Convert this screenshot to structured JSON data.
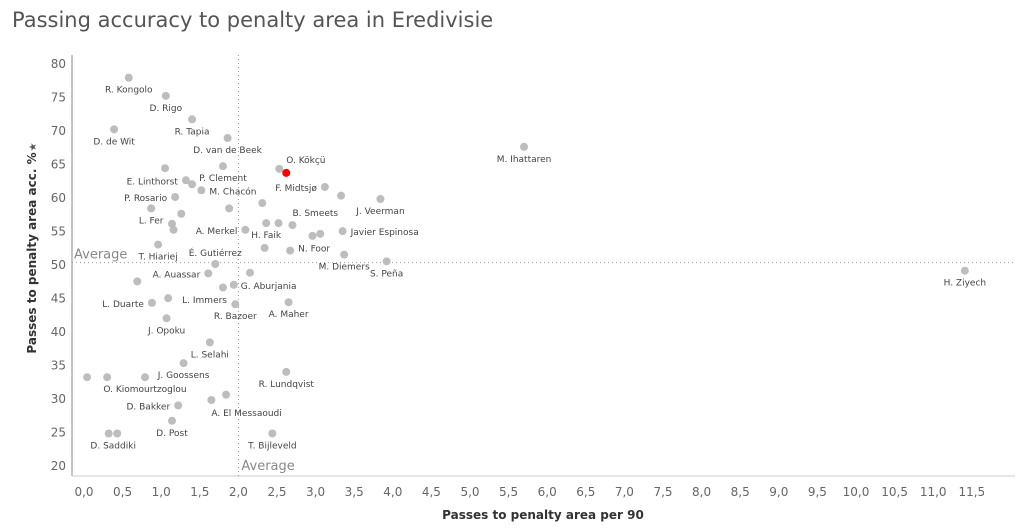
{
  "chart_data": {
    "type": "scatter",
    "title": "Passing accuracy to penalty area in Eredivisie",
    "xlabel": "Passes to penalty area per 90",
    "ylabel": "Passes to penalty area acc. %",
    "ylabel_icon": "sort-star-icon",
    "xlim": [
      0,
      11.5
    ],
    "ylim": [
      20,
      80
    ],
    "x_ticks": [
      "0,0",
      "0,5",
      "1,0",
      "1,5",
      "2,0",
      "2,5",
      "3,0",
      "3,5",
      "4,0",
      "4,5",
      "5,0",
      "5,5",
      "6,0",
      "6,5",
      "7,0",
      "7,5",
      "8,0",
      "8,5",
      "9,0",
      "9,5",
      "10,0",
      "10,5",
      "11,0",
      "11,5"
    ],
    "y_ticks": [
      "20",
      "25",
      "30",
      "35",
      "40",
      "45",
      "50",
      "55",
      "60",
      "65",
      "70",
      "75",
      "80"
    ],
    "grid": false,
    "reference_lines": {
      "x_average": 2.0,
      "y_average": 50.2,
      "label": "Average"
    },
    "colors": {
      "point": "#bdbdbd",
      "highlight": "#ff0000",
      "reference": "#999999"
    },
    "points": [
      {
        "name": "R. Kongolo",
        "x": 0.58,
        "y": 77.8
      },
      {
        "name": "D. Rigo",
        "x": 1.06,
        "y": 75.1
      },
      {
        "name": "R. Tapia",
        "x": 1.4,
        "y": 71.6
      },
      {
        "name": "D. de Wit",
        "x": 0.39,
        "y": 70.1
      },
      {
        "name": "D. van de Beek",
        "x": 1.86,
        "y": 68.8
      },
      {
        "name": "",
        "x": 1.05,
        "y": 64.3
      },
      {
        "name": "P. Clement",
        "x": 1.8,
        "y": 64.6
      },
      {
        "name": "",
        "x": 2.53,
        "y": 64.2
      },
      {
        "name": "O. Kökçü",
        "x": 2.62,
        "y": 63.6,
        "highlight": true
      },
      {
        "name": "E. Linthorst",
        "x": 1.32,
        "y": 62.5
      },
      {
        "name": "",
        "x": 1.4,
        "y": 61.9
      },
      {
        "name": "M. Chacón",
        "x": 1.52,
        "y": 61.0
      },
      {
        "name": "F. Midtsjø",
        "x": 3.12,
        "y": 61.5
      },
      {
        "name": "",
        "x": 3.33,
        "y": 60.2
      },
      {
        "name": "J. Veerman",
        "x": 3.84,
        "y": 59.7
      },
      {
        "name": "P. Rosario",
        "x": 1.18,
        "y": 60.0
      },
      {
        "name": "",
        "x": 2.31,
        "y": 59.1
      },
      {
        "name": "L. Fer",
        "x": 0.87,
        "y": 58.3
      },
      {
        "name": "",
        "x": 1.26,
        "y": 57.5
      },
      {
        "name": "",
        "x": 1.88,
        "y": 58.3
      },
      {
        "name": "",
        "x": 1.14,
        "y": 56.0
      },
      {
        "name": "",
        "x": 1.16,
        "y": 55.1
      },
      {
        "name": "A. Merkel",
        "x": 2.09,
        "y": 55.1
      },
      {
        "name": "H. Faik",
        "x": 2.36,
        "y": 56.1
      },
      {
        "name": "",
        "x": 2.52,
        "y": 56.1
      },
      {
        "name": "B. Smeets",
        "x": 2.7,
        "y": 55.8
      },
      {
        "name": "",
        "x": 2.96,
        "y": 54.2
      },
      {
        "name": "",
        "x": 3.06,
        "y": 54.5
      },
      {
        "name": "Javier Espinosa",
        "x": 3.35,
        "y": 54.9
      },
      {
        "name": "T. Hiariej",
        "x": 0.96,
        "y": 52.9
      },
      {
        "name": "",
        "x": 2.34,
        "y": 52.4
      },
      {
        "name": "N. Foor",
        "x": 2.67,
        "y": 52.0
      },
      {
        "name": "M. Diemers",
        "x": 3.37,
        "y": 51.4
      },
      {
        "name": "S. Peña",
        "x": 3.92,
        "y": 50.4
      },
      {
        "name": "É. Gutiérrez",
        "x": 1.7,
        "y": 50.0
      },
      {
        "name": "A. Auassar",
        "x": 1.61,
        "y": 48.6
      },
      {
        "name": "",
        "x": 2.15,
        "y": 48.7
      },
      {
        "name": "",
        "x": 0.69,
        "y": 47.4
      },
      {
        "name": "",
        "x": 1.8,
        "y": 46.5
      },
      {
        "name": "G. Aburjania",
        "x": 1.94,
        "y": 46.9
      },
      {
        "name": "L. Duarte",
        "x": 0.88,
        "y": 44.2
      },
      {
        "name": "L. Immers",
        "x": 1.09,
        "y": 44.9
      },
      {
        "name": "R. Bazoer",
        "x": 1.96,
        "y": 44.0
      },
      {
        "name": "A. Maher",
        "x": 2.65,
        "y": 44.3
      },
      {
        "name": "J. Opoku",
        "x": 1.07,
        "y": 41.9
      },
      {
        "name": "L. Selahi",
        "x": 1.63,
        "y": 38.3
      },
      {
        "name": "J. Goossens",
        "x": 1.29,
        "y": 35.2
      },
      {
        "name": "",
        "x": 0.04,
        "y": 33.1
      },
      {
        "name": "",
        "x": 0.3,
        "y": 33.1
      },
      {
        "name": "O. Kiomourtzoglou",
        "x": 0.79,
        "y": 33.1
      },
      {
        "name": "R. Lundqvist",
        "x": 2.62,
        "y": 33.9
      },
      {
        "name": "",
        "x": 1.84,
        "y": 30.5
      },
      {
        "name": "A. El Messaoudi",
        "x": 1.65,
        "y": 29.7
      },
      {
        "name": "D. Bakker",
        "x": 1.22,
        "y": 28.9
      },
      {
        "name": "D. Post",
        "x": 1.14,
        "y": 26.6
      },
      {
        "name": "",
        "x": 0.32,
        "y": 24.7
      },
      {
        "name": "D. Saddiki",
        "x": 0.43,
        "y": 24.7
      },
      {
        "name": "T. Bijleveld",
        "x": 2.44,
        "y": 24.7
      },
      {
        "name": "M. Ihattaren",
        "x": 5.7,
        "y": 67.5
      },
      {
        "name": "H. Ziyech",
        "x": 11.41,
        "y": 49.0
      }
    ]
  }
}
